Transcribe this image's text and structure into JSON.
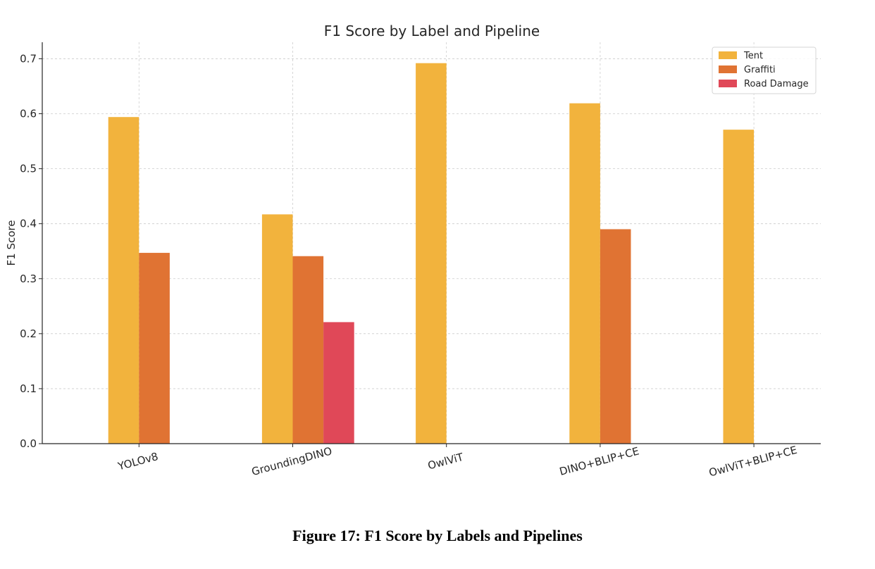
{
  "caption": "Figure 17: F1 Score by Labels and Pipelines",
  "chart_data": {
    "type": "bar",
    "title": "F1 Score by Label and Pipeline",
    "xlabel": "",
    "ylabel": "F1 Score",
    "ylim": [
      0,
      0.73
    ],
    "yticks": [
      0.0,
      0.1,
      0.2,
      0.3,
      0.4,
      0.5,
      0.6,
      0.7
    ],
    "ytick_labels": [
      "0.0",
      "0.1",
      "0.2",
      "0.3",
      "0.4",
      "0.5",
      "0.6",
      "0.7"
    ],
    "categories": [
      "YOLOv8",
      "GroundingDINO",
      "OwlViT",
      "DINO+BLIP+CE",
      "OwlViT+BLIP+CE"
    ],
    "series": [
      {
        "name": "Tent",
        "color": "#F2B33D",
        "values": [
          0.594,
          0.417,
          0.692,
          0.619,
          0.571
        ]
      },
      {
        "name": "Graffiti",
        "color": "#E07333",
        "values": [
          0.347,
          0.341,
          null,
          0.39,
          null
        ]
      },
      {
        "name": "Road Damage",
        "color": "#E04858",
        "values": [
          null,
          0.221,
          null,
          null,
          null
        ]
      }
    ],
    "grid": true,
    "legend_position": "top-right"
  }
}
